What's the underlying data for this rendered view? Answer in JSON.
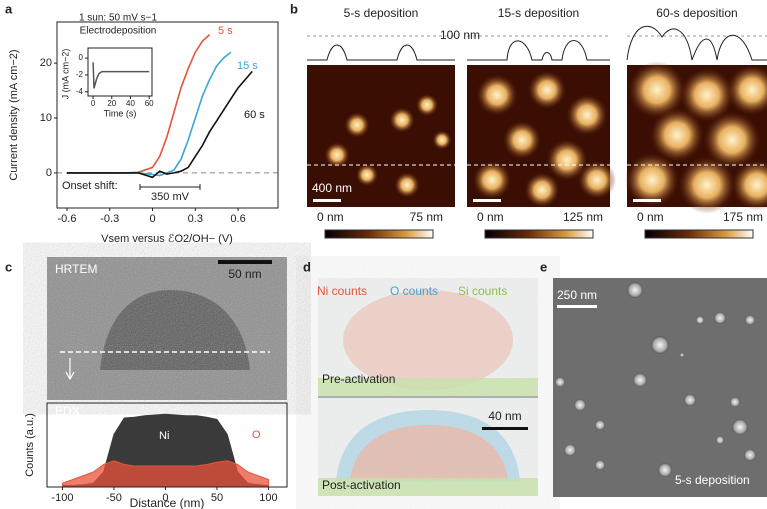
{
  "chart_data": [
    {
      "type": "line",
      "letter": "a",
      "xlabel": "Vsem versus ℰO2/OH− (V)",
      "ylabel": "Current density (mA cm−2)",
      "x": [
        -0.6,
        -0.4,
        -0.2,
        -0.1,
        0,
        0.05,
        0.1,
        0.15,
        0.2,
        0.25,
        0.3,
        0.35,
        0.4,
        0.45,
        0.5,
        0.55,
        0.6,
        0.65,
        0.7
      ],
      "series": [
        {
          "name": "5 s",
          "color": "#e8533a",
          "values": [
            0,
            0,
            0,
            0.1,
            1,
            3,
            6.5,
            11,
            15.5,
            19,
            22,
            24,
            25.2,
            null,
            null,
            null,
            null,
            null,
            null
          ]
        },
        {
          "name": "15 s",
          "color": "#3aa6d6",
          "values": [
            0,
            0,
            0,
            0,
            -0.3,
            -0.5,
            0,
            0.5,
            2.5,
            6,
            10,
            14,
            17,
            19.5,
            21,
            22,
            null,
            null,
            null
          ]
        },
        {
          "name": "60 s",
          "color": "#111111",
          "values": [
            0,
            0,
            0,
            0,
            -0.8,
            0.3,
            -0.2,
            0,
            0.3,
            1,
            3,
            5,
            7.5,
            9.5,
            11.5,
            13.5,
            15.5,
            17,
            18.5
          ]
        }
      ],
      "xlim": [
        -0.67,
        0.88
      ],
      "ylim": [
        -6.4,
        27.5
      ],
      "xticks": [
        -0.6,
        -0.3,
        0,
        0.3,
        0.6
      ],
      "yticks": [
        0,
        10,
        20
      ],
      "zero_line": true,
      "annotations": [
        "Onset shift:",
        "350 mV"
      ]
    },
    {
      "type": "line",
      "title": "1 sun: 50 mV s−1",
      "subtitle": "Electrodeposition",
      "xlabel": "Time (s)",
      "ylabel": "J (mA cm−2)",
      "x": [
        0,
        1,
        2,
        4,
        6,
        8,
        10,
        15,
        20,
        30,
        40,
        50,
        60
      ],
      "series": [
        {
          "color": "#555555",
          "values": [
            -0.5,
            -3.6,
            -3.2,
            -2.4,
            -1.9,
            -1.7,
            -1.6,
            -1.6,
            -1.6,
            -1.6,
            -1.6,
            -1.6,
            -1.6
          ]
        }
      ],
      "xlim": [
        -5.4,
        63
      ],
      "ylim": [
        -4.5,
        1.2
      ],
      "xticks": [
        0,
        20,
        40,
        60
      ],
      "yticks": [
        0,
        -2,
        -4
      ]
    },
    {
      "type": "area",
      "letter": "c",
      "image_label": "HRTEM",
      "scale_bar": "50 nm",
      "title": "EDX",
      "xlabel": "Distance (nm)",
      "ylabel": "Counts (a.u.)",
      "x": [
        -100,
        -90,
        -80,
        -70,
        -60,
        -50,
        -40,
        -30,
        -20,
        -10,
        0,
        10,
        20,
        30,
        40,
        50,
        60,
        70,
        80,
        90,
        100
      ],
      "series": [
        {
          "name": "Ni",
          "color": "#3a3a3a",
          "values": [
            0.02,
            0.02,
            0.03,
            0.05,
            0.2,
            0.7,
            0.92,
            0.93,
            0.95,
            0.96,
            0.97,
            0.96,
            0.95,
            0.95,
            0.93,
            0.9,
            0.7,
            0.2,
            0.05,
            0.03,
            0.02
          ]
        },
        {
          "name": "O",
          "color": "#e8533a",
          "values": [
            0.05,
            0.1,
            0.15,
            0.2,
            0.3,
            0.35,
            0.3,
            0.28,
            0.28,
            0.28,
            0.28,
            0.28,
            0.28,
            0.28,
            0.3,
            0.33,
            0.35,
            0.3,
            0.2,
            0.15,
            0.1
          ]
        }
      ],
      "xlim": [
        -115,
        118
      ],
      "ylim": [
        0,
        1.12
      ],
      "xticks": [
        -100,
        -50,
        0,
        50,
        100
      ]
    }
  ],
  "panels": {
    "b": {
      "letter": "b",
      "height_ref": "100 nm",
      "scale_bar": "400 nm",
      "images": [
        {
          "title": "5-s deposition",
          "scale_min": "0 nm",
          "scale_max": "75 nm"
        },
        {
          "title": "15-s deposition",
          "scale_min": "0 nm",
          "scale_max": "125 nm"
        },
        {
          "title": "60-s deposition",
          "scale_min": "0 nm",
          "scale_max": "175 nm"
        }
      ]
    },
    "d": {
      "letter": "d",
      "legend": [
        "Ni counts",
        "O counts",
        "Si counts"
      ],
      "top": "Pre-activation",
      "bottom": "Post-activation",
      "scale_bar": "40 nm"
    },
    "e": {
      "letter": "e",
      "scale_bar": "250 nm",
      "caption": "5-s deposition"
    }
  }
}
